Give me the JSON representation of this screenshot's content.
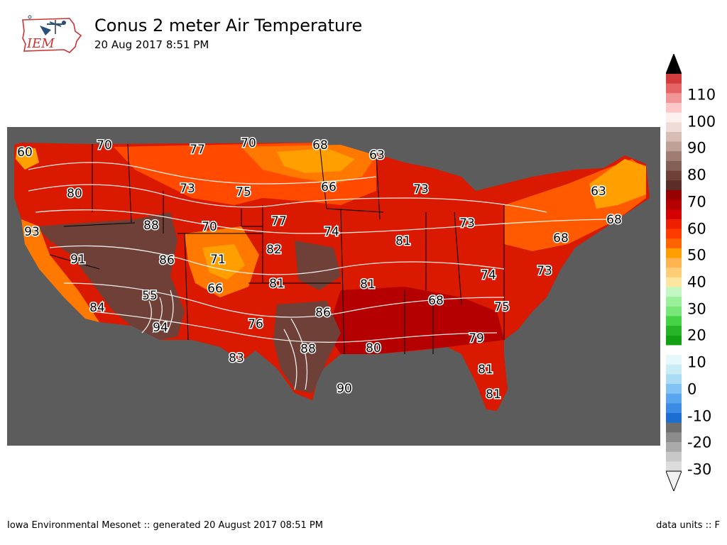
{
  "logo": {
    "text": "IEM"
  },
  "title": "Conus 2 meter Air Temperature",
  "subtitle": "20 Aug 2017 8:51 PM",
  "footer": {
    "left": "Iowa Environmental Mesonet :: generated 20 August 2017 08:51 PM",
    "right": "data units :: F"
  },
  "colorbar": {
    "labels": [
      "110",
      "100",
      "90",
      "80",
      "70",
      "60",
      "50",
      "40",
      "30",
      "20",
      "10",
      "0",
      "-10",
      "-20",
      "-30"
    ],
    "colors": [
      "#f2f2f2",
      "#dcdcdc",
      "#c8c8c8",
      "#aaaaaa",
      "#8c8c8c",
      "#6e6e6e",
      "#1e6ed2",
      "#3c8ce6",
      "#5aa5f0",
      "#82c3f5",
      "#aadcf5",
      "#c8ebf5",
      "#e6f8fa",
      "#ffffff",
      "#14a014",
      "#28b428",
      "#46d246",
      "#78e678",
      "#9bf09b",
      "#c3f8c3",
      "#ffe6a0",
      "#ffcd78",
      "#ffb450",
      "#ff9c00",
      "#ff6400",
      "#ff3c00",
      "#ee1e00",
      "#d20000",
      "#b40000",
      "#960000",
      "#5a2d28",
      "#6e4037",
      "#826055",
      "#a07d72",
      "#bea096",
      "#d7bdb4",
      "#f0dcd7",
      "#fff0f0",
      "#ffc8c8",
      "#f09696",
      "#e66464",
      "#d23c3c",
      "#000000"
    ]
  },
  "map_labels": [
    "60",
    "70",
    "77",
    "70",
    "68",
    "63",
    "80",
    "73",
    "75",
    "66",
    "73",
    "63",
    "93",
    "88",
    "70",
    "77",
    "74",
    "68",
    "73",
    "68",
    "91",
    "86",
    "71",
    "82",
    "81",
    "81",
    "55",
    "66",
    "81",
    "74",
    "73",
    "68",
    "75",
    "84",
    "94",
    "76",
    "86",
    "88",
    "79",
    "83",
    "80",
    "81",
    "90",
    "81"
  ]
}
